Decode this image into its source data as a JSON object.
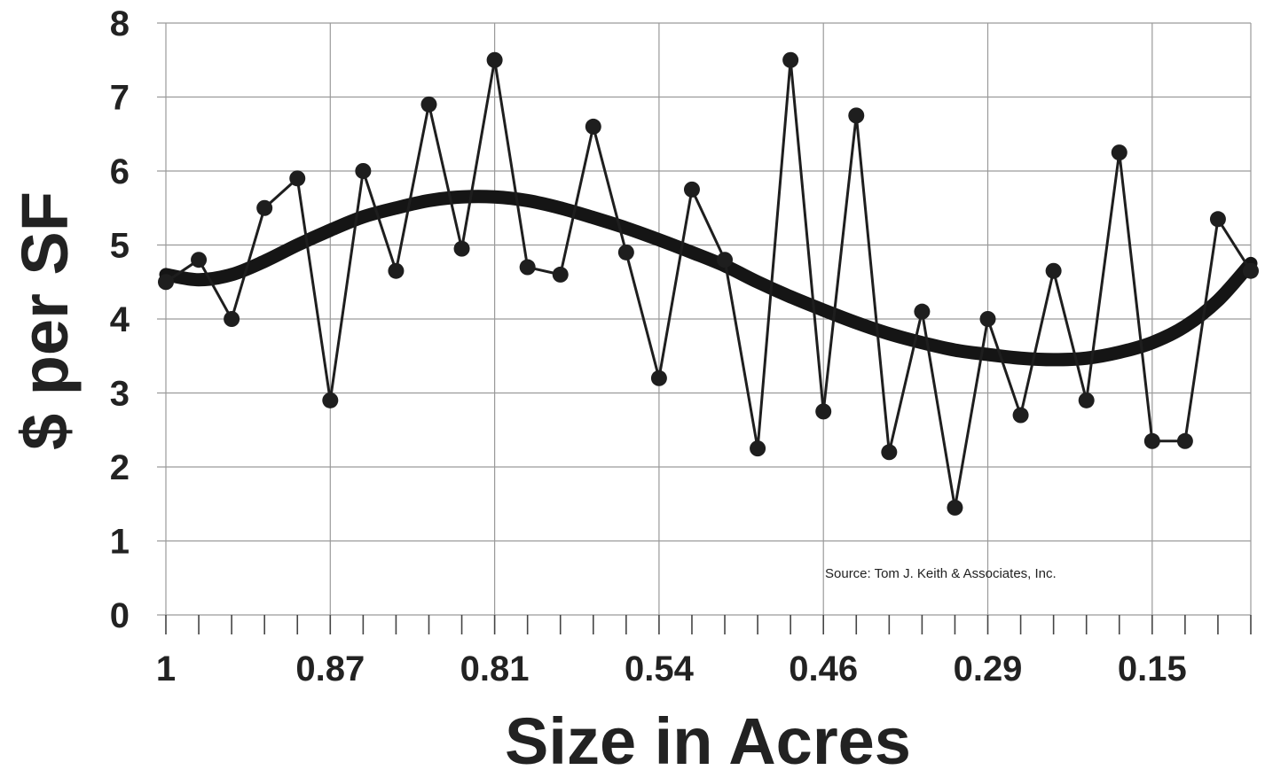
{
  "chart_data": {
    "type": "line",
    "xlabel": "Size in Acres",
    "ylabel": "$ per SF",
    "ylim": [
      0,
      8
    ],
    "y_ticks": [
      0,
      1,
      2,
      3,
      4,
      5,
      6,
      7,
      8
    ],
    "x_tick_labels": [
      {
        "index": 0,
        "label": "1"
      },
      {
        "index": 5,
        "label": "0.87"
      },
      {
        "index": 10,
        "label": "0.81"
      },
      {
        "index": 15,
        "label": "0.54"
      },
      {
        "index": 20,
        "label": "0.46"
      },
      {
        "index": 25,
        "label": "0.29"
      },
      {
        "index": 30,
        "label": "0.15"
      }
    ],
    "grid": true,
    "annotation": "Source:  Tom J. Keith & Associates, Inc.",
    "series": [
      {
        "name": "",
        "style": "line-markers",
        "values": [
          4.5,
          4.8,
          4.0,
          5.5,
          5.9,
          2.9,
          6.0,
          4.65,
          6.9,
          4.95,
          7.5,
          4.7,
          4.6,
          6.6,
          4.9,
          3.2,
          5.75,
          4.8,
          2.25,
          7.5,
          2.75,
          6.75,
          2.2,
          4.1,
          1.45,
          4.0,
          2.7,
          4.65,
          2.9,
          6.25,
          2.35,
          2.35,
          5.35,
          4.65
        ]
      },
      {
        "name": "",
        "style": "trend",
        "values": [
          4.6,
          4.53,
          4.6,
          4.78,
          5.0,
          5.2,
          5.38,
          5.5,
          5.6,
          5.65,
          5.65,
          5.6,
          5.5,
          5.37,
          5.23,
          5.07,
          4.9,
          4.72,
          4.5,
          4.3,
          4.12,
          3.95,
          3.8,
          3.68,
          3.58,
          3.52,
          3.47,
          3.45,
          3.47,
          3.55,
          3.68,
          3.9,
          4.25,
          4.75
        ]
      }
    ],
    "colors": {
      "line": "#1e1e1e",
      "trend": "#151515",
      "grid": "#9a9a9a",
      "text": "#222222"
    }
  }
}
